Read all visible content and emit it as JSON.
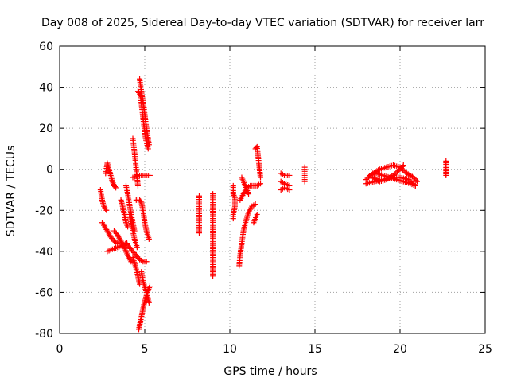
{
  "chart_data": {
    "type": "scatter",
    "title": "Day 008 of 2025, Sidereal Day-to-day VTEC variation (SDTVAR) for receiver larr",
    "xlabel": "GPS time / hours",
    "ylabel": "SDTVAR / TECUs",
    "xlim": [
      0,
      25
    ],
    "ylim": [
      -80,
      60
    ],
    "xticks": [
      0,
      5,
      10,
      15,
      20,
      25
    ],
    "yticks": [
      -80,
      -60,
      -40,
      -20,
      0,
      20,
      40,
      60
    ],
    "grid": true,
    "legend": "none",
    "marker": "plus",
    "color": "#ff0000",
    "tracks": [
      {
        "x": [
          4.6,
          4.75,
          4.9,
          5.05,
          5.2
        ],
        "y": [
          38,
          36,
          25,
          15,
          10
        ]
      },
      {
        "x": [
          4.7,
          4.8,
          4.95,
          5.1,
          5.25
        ],
        "y": [
          44,
          38,
          30,
          20,
          12
        ]
      },
      {
        "x": [
          4.3,
          4.4,
          4.5,
          4.6
        ],
        "y": [
          15,
          8,
          0,
          -8
        ]
      },
      {
        "x": [
          4.3,
          4.6,
          4.9,
          5.1,
          5.3
        ],
        "y": [
          -4,
          -3,
          -3,
          -3,
          -3
        ]
      },
      {
        "x": [
          2.4,
          2.5,
          2.6,
          2.75
        ],
        "y": [
          -10,
          -15,
          -18,
          -20
        ]
      },
      {
        "x": [
          2.7,
          2.8,
          2.9,
          3.0,
          3.1,
          3.2,
          3.3
        ],
        "y": [
          -2,
          3,
          0,
          -3,
          -6,
          -8,
          -9
        ]
      },
      {
        "x": [
          3.6,
          3.7,
          3.8,
          3.9,
          4.0
        ],
        "y": [
          -15,
          -18,
          -22,
          -26,
          -28
        ]
      },
      {
        "x": [
          3.9,
          4.0,
          4.1,
          4.2,
          4.3,
          4.4
        ],
        "y": [
          -8,
          -12,
          -17,
          -22,
          -26,
          -30
        ]
      },
      {
        "x": [
          4.5,
          4.7,
          4.8,
          4.9,
          5.0,
          5.1,
          5.25
        ],
        "y": [
          -15,
          -15,
          -16,
          -20,
          -26,
          -30,
          -34
        ]
      },
      {
        "x": [
          4.1,
          4.25,
          4.4,
          4.55
        ],
        "y": [
          -22,
          -28,
          -34,
          -38
        ]
      },
      {
        "x": [
          2.5,
          2.8,
          3.0,
          3.2,
          3.4
        ],
        "y": [
          -26,
          -30,
          -33,
          -35,
          -36
        ]
      },
      {
        "x": [
          2.8,
          3.1,
          3.4,
          3.7,
          3.95
        ],
        "y": [
          -40,
          -39,
          -38,
          -37,
          -36
        ]
      },
      {
        "x": [
          3.2,
          3.4,
          3.6,
          3.8,
          4.0,
          4.2
        ],
        "y": [
          -30,
          -32,
          -35,
          -38,
          -42,
          -45
        ]
      },
      {
        "x": [
          3.9,
          4.1,
          4.3,
          4.5,
          4.7,
          4.9,
          5.1
        ],
        "y": [
          -36,
          -38,
          -40,
          -42,
          -44,
          -45,
          -45
        ]
      },
      {
        "x": [
          4.3,
          4.45,
          4.6,
          4.7
        ],
        "y": [
          -43,
          -47,
          -52,
          -56
        ]
      },
      {
        "x": [
          4.8,
          4.95,
          5.1,
          5.25
        ],
        "y": [
          -50,
          -56,
          -60,
          -65
        ]
      },
      {
        "x": [
          4.65,
          4.75,
          4.85,
          4.95,
          5.05,
          5.15,
          5.3
        ],
        "y": [
          -78,
          -74,
          -70,
          -66,
          -63,
          -60,
          -57
        ]
      },
      {
        "x": [
          8.2,
          8.2,
          8.2,
          8.2
        ],
        "y": [
          -13,
          -25,
          -30,
          -31
        ]
      },
      {
        "x": [
          9.0,
          9.0,
          9.0,
          9.0,
          9.0,
          9.0,
          9.0
        ],
        "y": [
          -12,
          -23,
          -25,
          -49,
          -50,
          -51,
          -52
        ]
      },
      {
        "x": [
          10.2,
          10.2,
          10.3,
          10.3,
          10.2,
          10.2
        ],
        "y": [
          -8,
          -12,
          -14,
          -18,
          -22,
          -24
        ]
      },
      {
        "x": [
          10.55,
          10.6,
          10.7,
          10.8,
          10.95,
          11.1,
          11.3,
          11.5
        ],
        "y": [
          -47,
          -42,
          -36,
          -30,
          -25,
          -21,
          -18,
          -17
        ]
      },
      {
        "x": [
          10.6,
          10.8,
          11.0,
          11.2,
          11.4,
          11.6,
          11.8
        ],
        "y": [
          -15,
          -12,
          -9,
          -8,
          -8,
          -8,
          -7
        ]
      },
      {
        "x": [
          10.7,
          10.9,
          11.1
        ],
        "y": [
          -4,
          -8,
          -12
        ]
      },
      {
        "x": [
          11.5,
          11.6,
          11.8
        ],
        "y": [
          10,
          11,
          -4
        ]
      },
      {
        "x": [
          11.6,
          11.4
        ],
        "y": [
          -22,
          -26
        ]
      },
      {
        "x": [
          13.0,
          13.2,
          13.5
        ],
        "y": [
          -2,
          -3,
          -3
        ]
      },
      {
        "x": [
          13.0,
          13.2,
          13.5
        ],
        "y": [
          -6,
          -7,
          -8
        ]
      },
      {
        "x": [
          13.0,
          13.2,
          13.5
        ],
        "y": [
          -10,
          -9,
          -10
        ]
      },
      {
        "x": [
          14.4,
          14.4,
          14.4,
          14.4,
          14.4
        ],
        "y": [
          1,
          -1,
          -3,
          -5,
          -6
        ]
      },
      {
        "x": [
          18.0,
          18.4,
          18.8,
          19.2,
          19.6,
          20.0,
          20.4,
          20.8,
          21.0
        ],
        "y": [
          -5,
          -2,
          0,
          1,
          2,
          1,
          -2,
          -4,
          -6
        ]
      },
      {
        "x": [
          18.0,
          18.5,
          19.0,
          19.5,
          20.0,
          20.5,
          20.9
        ],
        "y": [
          -7,
          -6,
          -5,
          -4,
          -4,
          -5,
          -8
        ]
      },
      {
        "x": [
          18.2,
          18.6,
          19.0,
          19.4,
          19.8,
          20.2,
          20.6,
          20.9
        ],
        "y": [
          -3,
          -2,
          -3,
          -4,
          -5,
          -6,
          -7,
          -8
        ]
      },
      {
        "x": [
          18.4,
          18.8,
          19.2,
          19.6,
          20.0,
          20.2
        ],
        "y": [
          -4,
          -6,
          -5,
          -3,
          0,
          2
        ]
      },
      {
        "x": [
          22.7,
          22.7,
          22.7
        ],
        "y": [
          4,
          0,
          -3
        ]
      }
    ]
  }
}
